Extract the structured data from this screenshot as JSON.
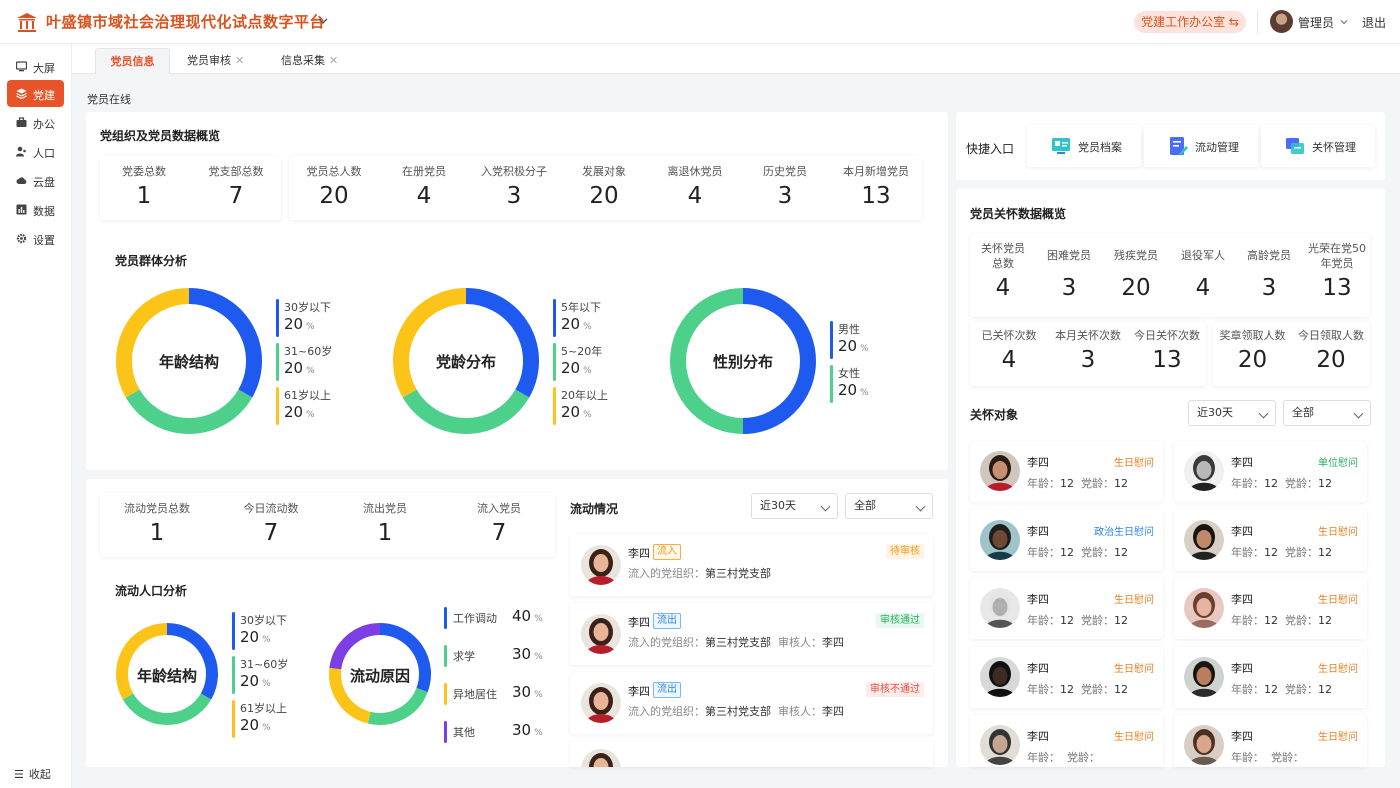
{
  "header": {
    "title": "叶盛镇市域社会治理现代化试点数字平台",
    "office": "党建工作办公室 ⇆",
    "user": "管理员",
    "logout": "退出"
  },
  "sidebar": {
    "items": [
      {
        "label": "大屏",
        "icon": "screen-icon"
      },
      {
        "label": "党建",
        "icon": "layers-icon"
      },
      {
        "label": "办公",
        "icon": "briefcase-icon"
      },
      {
        "label": "人口",
        "icon": "people-icon"
      },
      {
        "label": "云盘",
        "icon": "cloud-icon"
      },
      {
        "label": "数据",
        "icon": "chart-icon"
      },
      {
        "label": "设置",
        "icon": "gear-icon"
      }
    ],
    "collapse": "收起",
    "active_color": "#e8542a"
  },
  "tabs": [
    {
      "label": "党员信息"
    },
    {
      "label": "党员审核"
    },
    {
      "label": "信息采集"
    }
  ],
  "page_label": "党员在线",
  "overview": {
    "title": "党组织及党员数据概览",
    "org_stats": [
      {
        "label": "党委总数",
        "value": "1"
      },
      {
        "label": "党支部总数",
        "value": "7"
      }
    ],
    "member_stats": [
      {
        "label": "党员总人数",
        "value": "20"
      },
      {
        "label": "在册党员",
        "value": "4"
      },
      {
        "label": "入党积极分子",
        "value": "3"
      },
      {
        "label": "发展对象",
        "value": "20"
      },
      {
        "label": "离退休党员",
        "value": "4"
      },
      {
        "label": "历史党员",
        "value": "3"
      },
      {
        "label": "本月新增党员",
        "value": "13"
      }
    ]
  },
  "group_analysis": {
    "title": "党员群体分析",
    "unit": "%",
    "donuts": [
      {
        "label": "年龄结构",
        "items": [
          {
            "label": "30岁以下",
            "value": 20,
            "color": "#1f5af0"
          },
          {
            "label": "31~60岁",
            "value": 20,
            "color": "#4cd08a"
          },
          {
            "label": "61岁以上",
            "value": 20,
            "color": "#fcc419"
          }
        ]
      },
      {
        "label": "党龄分布",
        "items": [
          {
            "label": "5年以下",
            "value": 20,
            "color": "#1f5af0"
          },
          {
            "label": "5~20年",
            "value": 20,
            "color": "#4cd08a"
          },
          {
            "label": "20年以上",
            "value": 20,
            "color": "#fcc419"
          }
        ]
      },
      {
        "label": "性别分布",
        "items": [
          {
            "label": "男性",
            "value": 20,
            "color": "#1f5af0"
          },
          {
            "label": "女性",
            "value": 20,
            "color": "#4cd08a"
          }
        ]
      }
    ]
  },
  "flow_stats": [
    {
      "label": "流动党员总数",
      "value": "1"
    },
    {
      "label": "今日流动数",
      "value": "7"
    },
    {
      "label": "流出党员",
      "value": "1"
    },
    {
      "label": "流入党员",
      "value": "7"
    }
  ],
  "flow_analysis": {
    "title": "流动人口分析",
    "unit": "%",
    "age": {
      "label": "年龄结构",
      "items": [
        {
          "label": "30岁以下",
          "value": 20,
          "color": "#1f5af0"
        },
        {
          "label": "31~60岁",
          "value": 20,
          "color": "#4cd08a"
        },
        {
          "label": "61岁以上",
          "value": 20,
          "color": "#fcc419"
        }
      ]
    },
    "reason": {
      "label": "流动原因",
      "items": [
        {
          "label": "工作调动",
          "value": 40,
          "color": "#1f5af0"
        },
        {
          "label": "求学",
          "value": 30,
          "color": "#4cd08a"
        },
        {
          "label": "异地居住",
          "value": 30,
          "color": "#fcc419"
        },
        {
          "label": "其他",
          "value": 30,
          "color": "#7b3fe4"
        }
      ]
    }
  },
  "flow_list": {
    "title": "流动情况",
    "filter_time": "近30天",
    "filter_all": "全部",
    "items": [
      {
        "name": "李四",
        "tag": "流入",
        "org_label": "流入的党组织：",
        "org": "第三村党支部",
        "reviewer_label": "",
        "reviewer": "",
        "status": "待审核"
      },
      {
        "name": "李四",
        "tag": "流出",
        "org_label": "流入的党组织：",
        "org": "第三村党支部",
        "reviewer_label": "审核人：",
        "reviewer": "李四",
        "status": "审核通过"
      },
      {
        "name": "李四",
        "tag": "流出",
        "org_label": "流入的党组织：",
        "org": "第三村党支部",
        "reviewer_label": "审核人：",
        "reviewer": "李四",
        "status": "审核不通过"
      }
    ]
  },
  "quick": {
    "title": "快捷入口",
    "items": [
      {
        "label": "党员档案",
        "icon": "archive-icon"
      },
      {
        "label": "流动管理",
        "icon": "flow-manage-icon"
      },
      {
        "label": "关怀管理",
        "icon": "care-manage-icon"
      }
    ]
  },
  "care_overview": {
    "title": "党员关怀数据概览",
    "row1": [
      {
        "label": "关怀党员总数",
        "value": "4"
      },
      {
        "label": "困难党员",
        "value": "3"
      },
      {
        "label": "残疾党员",
        "value": "20"
      },
      {
        "label": "退役军人",
        "value": "4"
      },
      {
        "label": "高龄党员",
        "value": "3"
      },
      {
        "label": "光荣在党50年党员",
        "value": "13"
      }
    ],
    "row2a": [
      {
        "label": "已关怀次数",
        "value": "4"
      },
      {
        "label": "本月关怀次数",
        "value": "3"
      },
      {
        "label": "今日关怀次数",
        "value": "13"
      }
    ],
    "row2b": [
      {
        "label": "奖章领取人数",
        "value": "20"
      },
      {
        "label": "今日领取人数",
        "value": "20"
      }
    ]
  },
  "care_targets": {
    "title": "关怀对象",
    "filter_time": "近30天",
    "filter_all": "全部",
    "age_label": "年龄：",
    "party_age_label": "党龄：",
    "items": [
      {
        "name": "李四",
        "type": "生日慰问",
        "age": "12",
        "party_age": "12"
      },
      {
        "name": "李四",
        "type": "单位慰问",
        "age": "12",
        "party_age": "12"
      },
      {
        "name": "李四",
        "type": "政治生日慰问",
        "age": "12",
        "party_age": "12"
      },
      {
        "name": "李四",
        "type": "生日慰问",
        "age": "12",
        "party_age": "12"
      },
      {
        "name": "李四",
        "type": "生日慰问",
        "age": "12",
        "party_age": "12"
      },
      {
        "name": "李四",
        "type": "生日慰问",
        "age": "12",
        "party_age": "12"
      },
      {
        "name": "李四",
        "type": "生日慰问",
        "age": "12",
        "party_age": "12"
      },
      {
        "name": "李四",
        "type": "生日慰问",
        "age": "12",
        "party_age": "12"
      },
      {
        "name": "李四",
        "type": "生日慰问",
        "age": "",
        "party_age": ""
      },
      {
        "name": "李四",
        "type": "生日慰问",
        "age": "",
        "party_age": ""
      }
    ]
  }
}
